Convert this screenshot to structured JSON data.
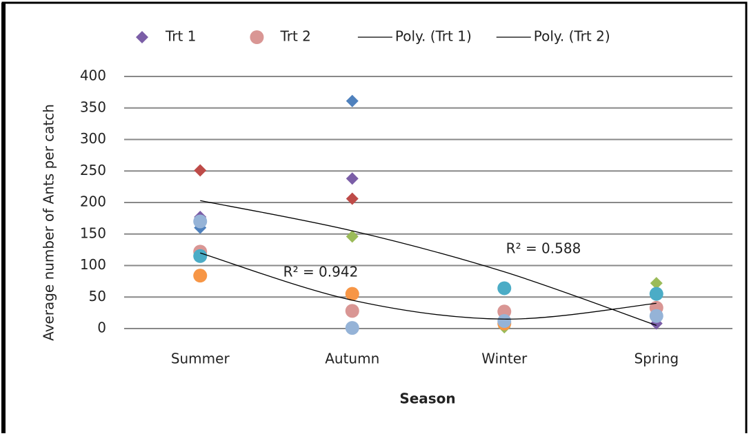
{
  "chart_data": {
    "type": "scatter",
    "x_label": "Season",
    "y_label": "Average number of Ants per catch",
    "categories": [
      "Summer",
      "Autumn",
      "Winter",
      "Spring"
    ],
    "ylim": [
      0,
      400
    ],
    "yticks": [
      0,
      50,
      100,
      150,
      200,
      250,
      300,
      350,
      400
    ],
    "grid": true,
    "legend": "top",
    "series": [
      {
        "name": "Trt 1",
        "marker": "diamond",
        "color": "#7b5ea7",
        "values": [
          177,
          238,
          5,
          8
        ]
      },
      {
        "marker": "diamond",
        "color": "#be4b48",
        "values": [
          251,
          206,
          null,
          null
        ]
      },
      {
        "marker": "diamond",
        "color": "#4f81bd",
        "values": [
          160,
          361,
          null,
          null
        ]
      },
      {
        "marker": "diamond",
        "color": "#9bbb59",
        "values": [
          null,
          146,
          2,
          72
        ]
      },
      {
        "name": "Trt 2",
        "marker": "circle",
        "color": "#d99694",
        "values": [
          122,
          28,
          27,
          33
        ]
      },
      {
        "marker": "circle",
        "color": "#f79646",
        "values": [
          84,
          55,
          8,
          null
        ]
      },
      {
        "marker": "circle",
        "color": "#4bacc6",
        "values": [
          115,
          null,
          64,
          55
        ]
      },
      {
        "marker": "circle",
        "color": "#95b3d7",
        "values": [
          170,
          1,
          12,
          20
        ]
      },
      {
        "name": "Poly. (Trt 1)",
        "marker": "line",
        "color": "#000000",
        "values": [
          203,
          155,
          90,
          5
        ]
      },
      {
        "name": "Poly. (Trt 2)",
        "marker": "line",
        "color": "#000000",
        "values": [
          120,
          45,
          15,
          40
        ]
      }
    ],
    "annotations": [
      "R² = 0.942",
      "R² = 0.588"
    ]
  }
}
